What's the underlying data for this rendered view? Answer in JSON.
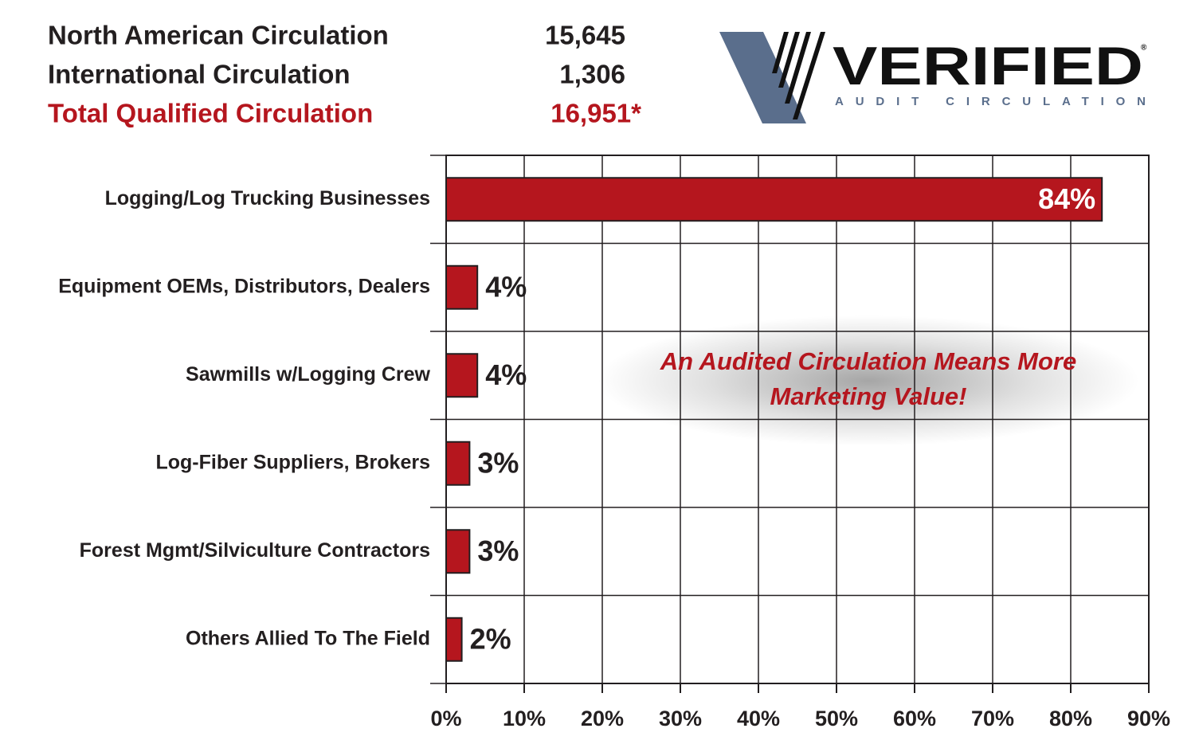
{
  "stats": [
    {
      "label": "North American Circulation",
      "value": "15,645"
    },
    {
      "label": "International Circulation",
      "value": "1,306"
    },
    {
      "label": "Total Qualified Circulation",
      "value": "16,951*"
    }
  ],
  "logo": {
    "name": "VERIFIED",
    "tagline": "AUDIT CIRCULATION",
    "mark": "®"
  },
  "chart_data": {
    "type": "barh",
    "categories": [
      "Logging/Log Trucking Businesses",
      "Equipment OEMs, Distributors, Dealers",
      "Sawmills w/Logging Crew",
      "Log-Fiber Suppliers, Brokers",
      "Forest Mgmt/Silviculture Contractors",
      "Others Allied To The Field"
    ],
    "values": [
      84,
      4,
      4,
      3,
      3,
      2
    ],
    "value_labels": [
      "84%",
      "4%",
      "4%",
      "3%",
      "3%",
      "2%"
    ],
    "color": "#b5161e",
    "xlim": [
      0,
      90
    ],
    "xticks": [
      {
        "value": 0,
        "label": "0%"
      },
      {
        "value": 10,
        "label": "10%"
      },
      {
        "value": 20,
        "label": "20%"
      },
      {
        "value": 30,
        "label": "30%"
      },
      {
        "value": 40,
        "label": "40%"
      },
      {
        "value": 50,
        "label": "50%"
      },
      {
        "value": 60,
        "label": "60%"
      },
      {
        "value": 70,
        "label": "70%"
      },
      {
        "value": 80,
        "label": "80%"
      },
      {
        "value": 90,
        "label": "90%"
      }
    ],
    "grid": true,
    "annotation": "An Audited Circulation Means More Marketing Value!"
  }
}
